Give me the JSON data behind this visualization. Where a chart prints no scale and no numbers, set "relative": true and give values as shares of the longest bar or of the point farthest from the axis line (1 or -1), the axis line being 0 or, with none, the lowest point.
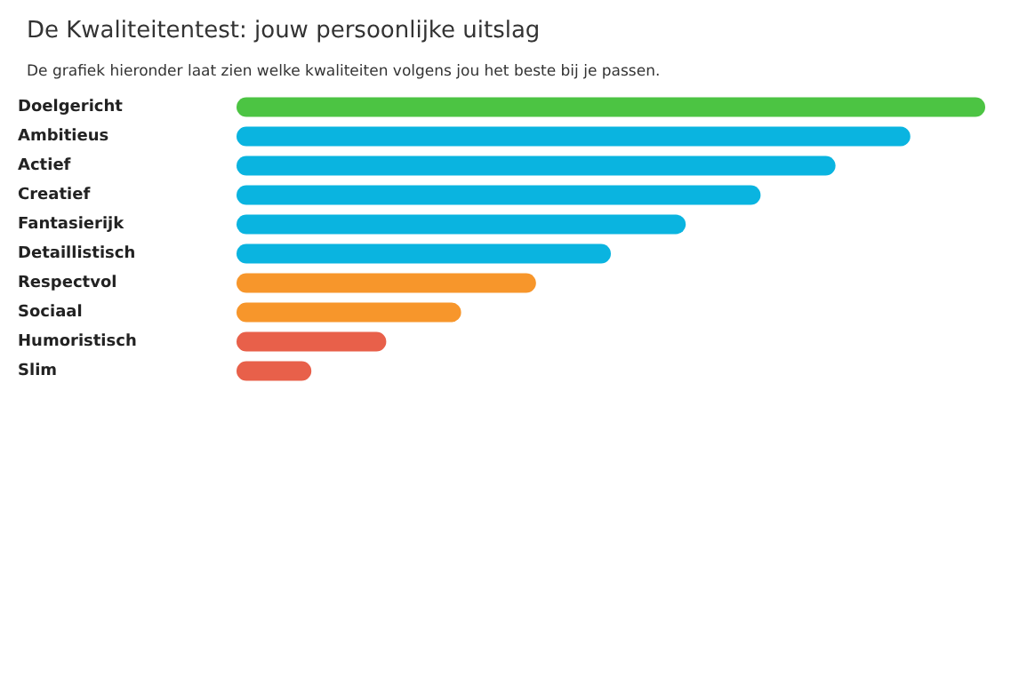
{
  "chart_data": {
    "type": "bar",
    "orientation": "horizontal",
    "relative": true,
    "title": "De Kwaliteitentest: jouw persoonlijke uitslag",
    "subtitle": "De grafiek hieronder laat zien welke kwaliteiten volgens jou het beste bij je passen.",
    "categories": [
      "Doelgericht",
      "Ambitieus",
      "Actief",
      "Creatief",
      "Fantasierijk",
      "Detaillistisch",
      "Respectvol",
      "Sociaal",
      "Humoristisch",
      "Slim"
    ],
    "values": [
      1,
      0.9,
      0.8,
      0.7,
      0.6,
      0.5,
      0.4,
      0.3,
      0.2,
      0.1
    ],
    "colors": [
      "#4cc443",
      "#0ab4e0",
      "#0ab4e0",
      "#0ab4e0",
      "#0ab4e0",
      "#0ab4e0",
      "#f7962b",
      "#f7962b",
      "#e8604a",
      "#e8604a"
    ],
    "data_labels": false
  }
}
